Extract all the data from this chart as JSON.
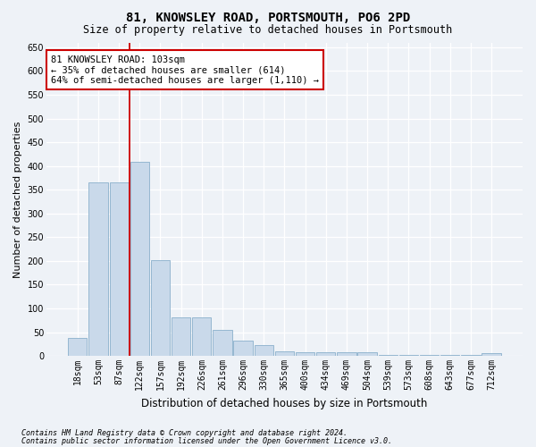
{
  "title": "81, KNOWSLEY ROAD, PORTSMOUTH, PO6 2PD",
  "subtitle": "Size of property relative to detached houses in Portsmouth",
  "xlabel": "Distribution of detached houses by size in Portsmouth",
  "ylabel": "Number of detached properties",
  "footnote1": "Contains HM Land Registry data © Crown copyright and database right 2024.",
  "footnote2": "Contains public sector information licensed under the Open Government Licence v3.0.",
  "bar_labels": [
    "18sqm",
    "53sqm",
    "87sqm",
    "122sqm",
    "157sqm",
    "192sqm",
    "226sqm",
    "261sqm",
    "296sqm",
    "330sqm",
    "365sqm",
    "400sqm",
    "434sqm",
    "469sqm",
    "504sqm",
    "539sqm",
    "573sqm",
    "608sqm",
    "643sqm",
    "677sqm",
    "712sqm"
  ],
  "bar_values": [
    37,
    365,
    365,
    408,
    202,
    81,
    81,
    55,
    33,
    22,
    10,
    8,
    8,
    8,
    8,
    2,
    2,
    2,
    2,
    2,
    5
  ],
  "bar_color": "#c9d9ea",
  "bar_edge_color": "#8ab0cc",
  "vline_x": 2.5,
  "vline_color": "#cc0000",
  "ylim": [
    0,
    660
  ],
  "yticks": [
    0,
    50,
    100,
    150,
    200,
    250,
    300,
    350,
    400,
    450,
    500,
    550,
    600,
    650
  ],
  "annotation_text": "81 KNOWSLEY ROAD: 103sqm\n← 35% of detached houses are smaller (614)\n64% of semi-detached houses are larger (1,110) →",
  "annotation_box_color": "#ffffff",
  "annotation_box_edge": "#cc0000",
  "bg_color": "#eef2f7",
  "plot_bg_color": "#eef2f7",
  "grid_color": "#ffffff",
  "title_fontsize": 10,
  "subtitle_fontsize": 8.5,
  "ylabel_fontsize": 8,
  "xlabel_fontsize": 8.5,
  "tick_fontsize": 7,
  "annot_fontsize": 7.5,
  "footnote_fontsize": 6
}
